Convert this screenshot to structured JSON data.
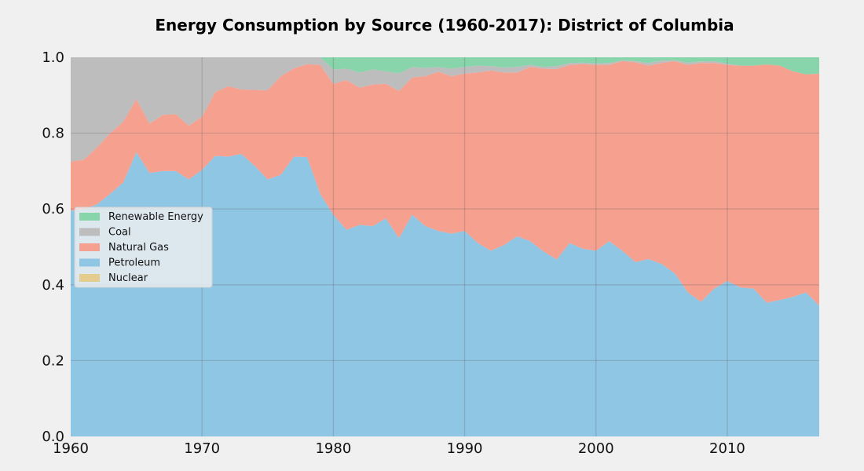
{
  "chart_data": {
    "type": "area",
    "stacked": true,
    "normalized": true,
    "title": "Energy Consumption by Source (1960-2017): District of Columbia",
    "xlabel": "",
    "ylabel": "",
    "xlim": [
      1960,
      2017
    ],
    "ylim": [
      0,
      1.0
    ],
    "xticks": [
      1960,
      1970,
      1980,
      1990,
      2000,
      2010
    ],
    "yticks": [
      0.0,
      0.2,
      0.4,
      0.6,
      0.8,
      1.0
    ],
    "x_tick_labels": [
      "1960",
      "1970",
      "1980",
      "1990",
      "2000",
      "2010"
    ],
    "y_tick_labels": [
      "0.0",
      "0.2",
      "0.4",
      "0.6",
      "0.8",
      "1.0"
    ],
    "grid": true,
    "legend_position": "center-left",
    "stack_order": [
      "Nuclear",
      "Petroleum",
      "Natural Gas",
      "Coal",
      "Renewable Energy"
    ],
    "legend_order": [
      "Renewable Energy",
      "Coal",
      "Natural Gas",
      "Petroleum",
      "Nuclear"
    ],
    "colors": {
      "Renewable Energy": "#88d4ab",
      "Coal": "#bdbdbd",
      "Natural Gas": "#f6a08f",
      "Petroleum": "#8fc6e4",
      "Nuclear": "#e5cd8f"
    },
    "x": [
      1960,
      1961,
      1962,
      1963,
      1964,
      1965,
      1966,
      1967,
      1968,
      1969,
      1970,
      1971,
      1972,
      1973,
      1974,
      1975,
      1976,
      1977,
      1978,
      1979,
      1980,
      1981,
      1982,
      1983,
      1984,
      1985,
      1986,
      1987,
      1988,
      1989,
      1990,
      1991,
      1992,
      1993,
      1994,
      1995,
      1996,
      1997,
      1998,
      1999,
      2000,
      2001,
      2002,
      2003,
      2004,
      2005,
      2006,
      2007,
      2008,
      2009,
      2010,
      2011,
      2012,
      2013,
      2014,
      2015,
      2016,
      2017
    ],
    "series": [
      {
        "name": "Nuclear",
        "values": [
          0,
          0,
          0,
          0,
          0,
          0,
          0,
          0,
          0,
          0,
          0,
          0,
          0,
          0,
          0,
          0,
          0,
          0,
          0,
          0,
          0,
          0,
          0,
          0,
          0,
          0,
          0,
          0,
          0,
          0,
          0,
          0,
          0,
          0,
          0,
          0,
          0,
          0,
          0,
          0,
          0,
          0,
          0,
          0,
          0,
          0,
          0,
          0,
          0,
          0,
          0,
          0,
          0,
          0,
          0,
          0,
          0,
          0
        ]
      },
      {
        "name": "Petroleum",
        "values": [
          0.595,
          0.6,
          0.612,
          0.64,
          0.67,
          0.75,
          0.695,
          0.7,
          0.7,
          0.678,
          0.703,
          0.74,
          0.738,
          0.745,
          0.714,
          0.678,
          0.69,
          0.738,
          0.737,
          0.64,
          0.585,
          0.545,
          0.558,
          0.555,
          0.575,
          0.523,
          0.585,
          0.555,
          0.542,
          0.535,
          0.542,
          0.51,
          0.49,
          0.505,
          0.528,
          0.515,
          0.488,
          0.467,
          0.51,
          0.495,
          0.49,
          0.515,
          0.49,
          0.46,
          0.468,
          0.455,
          0.43,
          0.38,
          0.355,
          0.39,
          0.41,
          0.393,
          0.39,
          0.353,
          0.36,
          0.368,
          0.38,
          0.345
        ]
      },
      {
        "name": "Natural Gas",
        "values": [
          0.13,
          0.13,
          0.15,
          0.16,
          0.16,
          0.14,
          0.13,
          0.148,
          0.15,
          0.142,
          0.14,
          0.168,
          0.186,
          0.17,
          0.2,
          0.235,
          0.26,
          0.233,
          0.245,
          0.34,
          0.345,
          0.395,
          0.362,
          0.373,
          0.355,
          0.388,
          0.362,
          0.395,
          0.42,
          0.415,
          0.415,
          0.45,
          0.475,
          0.455,
          0.432,
          0.46,
          0.482,
          0.502,
          0.47,
          0.487,
          0.49,
          0.465,
          0.5,
          0.527,
          0.51,
          0.53,
          0.56,
          0.6,
          0.63,
          0.595,
          0.57,
          0.585,
          0.588,
          0.628,
          0.618,
          0.595,
          0.575,
          0.612
        ]
      },
      {
        "name": "Coal",
        "values": [
          0.275,
          0.27,
          0.238,
          0.2,
          0.17,
          0.11,
          0.175,
          0.152,
          0.15,
          0.18,
          0.157,
          0.092,
          0.076,
          0.085,
          0.086,
          0.087,
          0.05,
          0.029,
          0.018,
          0.02,
          0.038,
          0.03,
          0.04,
          0.04,
          0.033,
          0.047,
          0.027,
          0.022,
          0.012,
          0.02,
          0.018,
          0.018,
          0.012,
          0.013,
          0.015,
          0.005,
          0.005,
          0.008,
          0.005,
          0.004,
          0.004,
          0.005,
          0.002,
          0.003,
          0.007,
          0.007,
          0.002,
          0.006,
          0.004,
          0.005,
          0.003,
          0,
          0,
          0,
          0,
          0,
          0,
          0
        ]
      },
      {
        "name": "Renewable Energy",
        "values": [
          0,
          0,
          0,
          0,
          0,
          0,
          0,
          0,
          0,
          0,
          0,
          0,
          0,
          0,
          0,
          0,
          0,
          0,
          0,
          0,
          0.032,
          0.03,
          0.04,
          0.032,
          0.037,
          0.042,
          0.026,
          0.028,
          0.026,
          0.03,
          0.025,
          0.022,
          0.023,
          0.027,
          0.025,
          0.02,
          0.025,
          0.023,
          0.015,
          0.014,
          0.016,
          0.015,
          0.008,
          0.01,
          0.015,
          0.008,
          0.008,
          0.014,
          0.011,
          0.01,
          0.017,
          0.022,
          0.022,
          0.019,
          0.022,
          0.037,
          0.045,
          0.043
        ]
      }
    ]
  }
}
